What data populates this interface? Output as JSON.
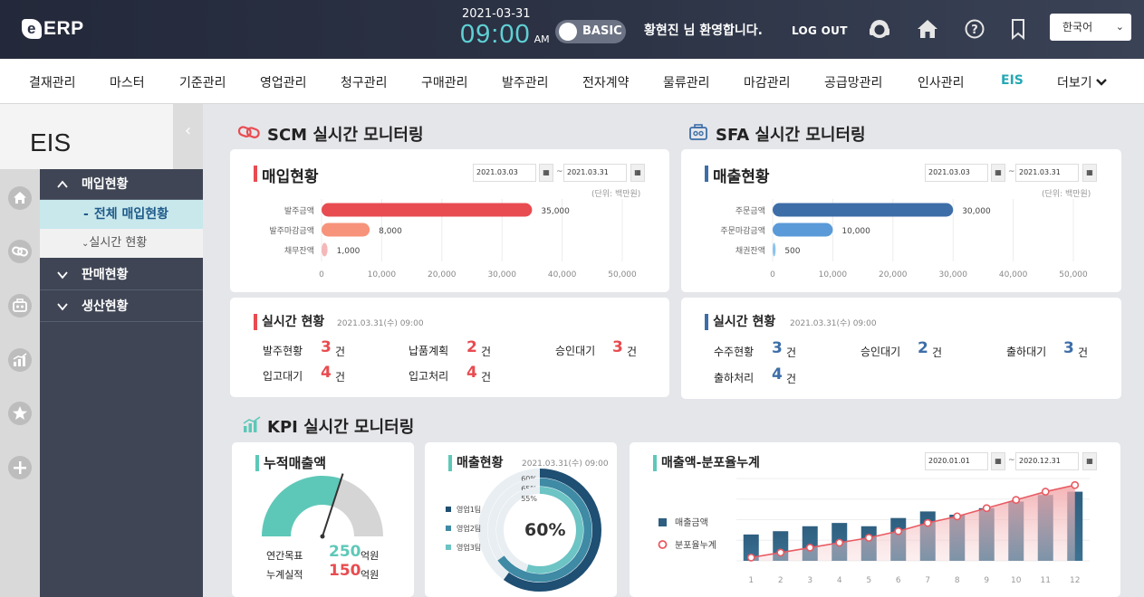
{
  "header": {
    "logo_text": "ERP",
    "date": "2021-03-31",
    "time": "09:00",
    "ampm": "AM",
    "mode_label": "BASIC",
    "welcome": "황현진 님 환영합니다.",
    "logout": "LOG OUT",
    "language": "한국어",
    "icons": [
      "headset-icon",
      "home-icon",
      "help-icon",
      "bookmark-icon"
    ]
  },
  "menu": [
    "결재관리",
    "마스터",
    "기준관리",
    "영업관리",
    "청구관리",
    "구매관리",
    "발주관리",
    "전자계약",
    "물류관리",
    "마감관리",
    "공급망관리",
    "인사관리",
    "EIS",
    "더보기"
  ],
  "sidebar": {
    "title": "EIS",
    "collapse_glyph": "‹",
    "icons": [
      "home-icon",
      "link-icon",
      "briefcase-icon",
      "chart-icon",
      "star-icon",
      "plus-icon"
    ],
    "groups": [
      {
        "label": "매입현황",
        "expanded": true,
        "children": [
          "전체 매입현황",
          "실시간 현황"
        ]
      },
      {
        "label": "판매현황",
        "expanded": false
      },
      {
        "label": "생산현황",
        "expanded": false
      }
    ]
  },
  "scm": {
    "title": "SCM 실시간 모니터링",
    "chart_title": "매입현황",
    "date_from": "2021.03.03",
    "date_to": "2021.03.31",
    "unit": "(단위: 백만원)",
    "realtime": {
      "title": "실시간 현황",
      "timestamp": "2021.03.31(수) 09:00",
      "items": [
        {
          "label": "발주현황",
          "value": "3",
          "unit": "건"
        },
        {
          "label": "납품계획",
          "value": "2",
          "unit": "건"
        },
        {
          "label": "승인대기",
          "value": "3",
          "unit": "건"
        },
        {
          "label": "입고대기",
          "value": "4",
          "unit": "건"
        },
        {
          "label": "입고처리",
          "value": "4",
          "unit": "건"
        }
      ]
    }
  },
  "sfa": {
    "title": "SFA 실시간 모니터링",
    "chart_title": "매출현황",
    "date_from": "2021.03.03",
    "date_to": "2021.03.31",
    "unit": "(단위: 백만원)",
    "realtime": {
      "title": "실시간 현황",
      "timestamp": "2021.03.31(수) 09:00",
      "items": [
        {
          "label": "수주현황",
          "value": "3",
          "unit": "건"
        },
        {
          "label": "승인대기",
          "value": "2",
          "unit": "건"
        },
        {
          "label": "출하대기",
          "value": "3",
          "unit": "건"
        },
        {
          "label": "출하처리",
          "value": "4",
          "unit": "건"
        }
      ]
    }
  },
  "kpi": {
    "title": "KPI 실시간 모니터링",
    "gauge_card": {
      "title": "누적매출액",
      "target_label": "연간목표",
      "target_value": "250",
      "actual_label": "누계실적",
      "actual_value": "150",
      "unit": "억원"
    },
    "donut_card": {
      "title": "매출현황",
      "timestamp": "2021.03.31(수) 09:00",
      "center_label": "60%"
    },
    "combo_card": {
      "title": "매출액-분포율누계",
      "date_from": "2020.01.01",
      "date_to": "2020.12.31"
    }
  },
  "colors": {
    "red": "#e84c50",
    "salmon": "#f7937a",
    "pink": "#f6b7b8",
    "blue": "#3d6ea8",
    "lightblue": "#5a9ad8",
    "teal": "#5ec8b8",
    "navy": "#1f4f72"
  },
  "chart_data": [
    {
      "type": "bar",
      "orientation": "horizontal",
      "categories": [
        "발주금액",
        "발주마감금액",
        "채무잔액"
      ],
      "values": [
        35000,
        8000,
        1000
      ],
      "data_labels": [
        "35,000",
        "8,000",
        "1,000"
      ],
      "xlim": [
        0,
        50000
      ],
      "xticks": [
        "0",
        "10,000",
        "20,000",
        "30,000",
        "40,000",
        "50,000"
      ],
      "grid": true
    },
    {
      "type": "bar",
      "orientation": "horizontal",
      "categories": [
        "주문금액",
        "주문마감금액",
        "채권잔액"
      ],
      "values": [
        30000,
        10000,
        500
      ],
      "data_labels": [
        "30,000",
        "10,000",
        "500"
      ],
      "xlim": [
        0,
        50000
      ],
      "xticks": [
        "0",
        "10,000",
        "20,000",
        "30,000",
        "40,000",
        "50,000"
      ],
      "grid": true
    },
    {
      "type": "gauge",
      "max": 250,
      "value": 150
    },
    {
      "type": "pie",
      "variant": "concentric-rings",
      "series": [
        {
          "name": "영업1팀",
          "value": 60,
          "label": "60%"
        },
        {
          "name": "영업2팀",
          "value": 65,
          "label": "65%"
        },
        {
          "name": "영업3팀",
          "value": 55,
          "label": "55%"
        }
      ]
    },
    {
      "type": "bar",
      "variant": "bar-line-combo",
      "categories": [
        "1",
        "2",
        "3",
        "4",
        "5",
        "6",
        "7",
        "8",
        "9",
        "10",
        "11",
        "12"
      ],
      "series": [
        {
          "name": "매출금액",
          "type": "bar",
          "values": [
            32,
            36,
            42,
            46,
            42,
            52,
            60,
            56,
            64,
            72,
            80,
            84
          ]
        },
        {
          "name": "분포율누계",
          "type": "line",
          "values": [
            4,
            10,
            16,
            22,
            28,
            36,
            46,
            54,
            64,
            74,
            84,
            92
          ]
        }
      ],
      "ylim": [
        0,
        100
      ],
      "grid": true,
      "legend": "left"
    }
  ]
}
